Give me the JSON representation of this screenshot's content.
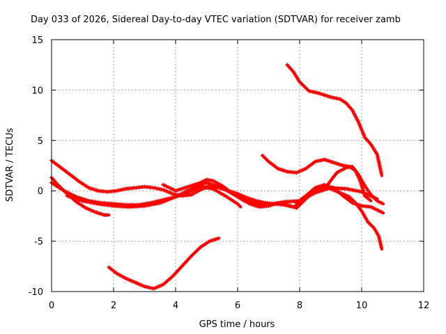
{
  "chart_data": {
    "type": "scatter",
    "title": "Day 033 of 2026, Sidereal Day-to-day VTEC variation (SDTVAR) for receiver zamb",
    "xlabel": "GPS time / hours",
    "ylabel": "SDTVAR / TECUs",
    "xlim": [
      0,
      12
    ],
    "ylim": [
      -10,
      15
    ],
    "xticks": [
      0,
      2,
      4,
      6,
      8,
      10,
      12
    ],
    "yticks": [
      -10,
      -5,
      0,
      5,
      10,
      15
    ],
    "xtick_labels": [
      "0",
      "2",
      "4",
      "6",
      "8",
      "10",
      "12"
    ],
    "ytick_labels": [
      "-10",
      "-5",
      "0",
      "5",
      "10",
      "15"
    ],
    "grid": true,
    "marker_color": "#ff0000",
    "series": [
      {
        "name": "track-1",
        "x": [
          0.0,
          0.3,
          0.6,
          0.9,
          1.2,
          1.5,
          1.8,
          2.1,
          2.4,
          2.7,
          3.0,
          3.3,
          3.6,
          3.9,
          4.2,
          4.5,
          4.8,
          5.1,
          5.4,
          5.7,
          6.0,
          6.3,
          6.6,
          6.9,
          7.2,
          7.5,
          7.8,
          8.0
        ],
        "y": [
          3.0,
          2.3,
          1.6,
          0.9,
          0.3,
          0.0,
          -0.1,
          0.0,
          0.2,
          0.3,
          0.4,
          0.3,
          0.1,
          -0.3,
          -0.5,
          -0.4,
          0.1,
          0.5,
          0.3,
          0.0,
          -0.3,
          -0.7,
          -1.0,
          -1.2,
          -1.3,
          -1.4,
          -1.6,
          -1.3
        ]
      },
      {
        "name": "track-2",
        "x": [
          0.0,
          0.2,
          0.5,
          0.8,
          1.1,
          1.4,
          1.7,
          1.85
        ],
        "y": [
          1.3,
          0.6,
          -0.3,
          -1.1,
          -1.7,
          -2.1,
          -2.4,
          -2.4
        ]
      },
      {
        "name": "track-3",
        "x": [
          0.0,
          0.4,
          0.8,
          1.2,
          1.6,
          2.0,
          2.4,
          2.8,
          3.2,
          3.6,
          4.0,
          4.4,
          4.8,
          5.2,
          5.6,
          6.0,
          6.1
        ],
        "y": [
          0.8,
          0.0,
          -0.6,
          -1.0,
          -1.2,
          -1.3,
          -1.4,
          -1.4,
          -1.2,
          -0.9,
          -0.6,
          -0.2,
          0.4,
          0.2,
          -0.5,
          -1.3,
          -1.6
        ]
      },
      {
        "name": "track-4",
        "x": [
          0.5,
          1.0,
          1.5,
          2.0,
          2.5,
          3.0,
          3.5,
          4.0,
          4.5,
          5.0,
          5.5,
          6.0,
          6.5,
          7.0,
          7.5,
          8.0,
          8.5,
          9.0,
          9.5,
          10.0,
          10.5
        ],
        "y": [
          -0.5,
          -1.0,
          -1.3,
          -1.5,
          -1.6,
          -1.5,
          -1.2,
          -0.6,
          0.2,
          0.8,
          0.3,
          -0.6,
          -1.2,
          -1.4,
          -1.1,
          -1.0,
          -0.2,
          0.3,
          0.2,
          -0.1,
          -0.8
        ]
      },
      {
        "name": "track-5",
        "x": [
          3.6,
          4.0,
          4.4,
          4.8,
          5.0,
          5.2,
          5.5,
          5.8,
          6.1,
          6.4,
          6.7,
          7.0,
          7.3,
          7.6,
          7.9,
          8.2,
          8.5,
          8.8,
          9.1,
          9.4,
          9.7,
          10.0,
          10.3,
          10.5,
          10.7
        ],
        "y": [
          0.6,
          0.0,
          0.4,
          0.8,
          1.1,
          1.0,
          0.5,
          -0.2,
          -0.8,
          -1.3,
          -1.6,
          -1.5,
          -1.2,
          -1.4,
          -1.7,
          -0.8,
          0.0,
          0.5,
          0.3,
          -0.5,
          -1.2,
          -1.5,
          -1.6,
          -1.9,
          -2.2
        ]
      },
      {
        "name": "track-6",
        "x": [
          7.9,
          8.2,
          8.5,
          8.8,
          9.0,
          9.3,
          9.6,
          9.8,
          10.0,
          10.2,
          10.4,
          10.55,
          10.65
        ],
        "y": [
          -1.2,
          -0.5,
          0.3,
          0.6,
          0.2,
          -0.2,
          -0.6,
          -1.2,
          -2.0,
          -3.1,
          -3.7,
          -4.5,
          -5.8
        ]
      },
      {
        "name": "track-7",
        "x": [
          7.6,
          7.8,
          8.0,
          8.3,
          8.6,
          9.0,
          9.3,
          9.5,
          9.7,
          9.9,
          10.1,
          10.3,
          10.5,
          10.65
        ],
        "y": [
          12.5,
          11.8,
          10.8,
          9.9,
          9.7,
          9.3,
          9.1,
          8.7,
          8.0,
          6.8,
          5.3,
          4.6,
          3.6,
          1.5
        ]
      },
      {
        "name": "track-8",
        "x": [
          6.8,
          7.0,
          7.3,
          7.6,
          7.9,
          8.2,
          8.5,
          8.8,
          9.1,
          9.4,
          9.6,
          9.8,
          9.95,
          10.1,
          10.3
        ],
        "y": [
          3.5,
          2.9,
          2.2,
          1.9,
          1.8,
          2.2,
          2.9,
          3.1,
          2.8,
          2.5,
          2.4,
          2.0,
          1.0,
          -0.5,
          -1.0
        ]
      },
      {
        "name": "track-9",
        "x": [
          8.8,
          9.0,
          9.2,
          9.5,
          9.7,
          9.9,
          10.1,
          10.3,
          10.5,
          10.7
        ],
        "y": [
          0.2,
          1.0,
          1.8,
          2.3,
          2.4,
          1.6,
          0.5,
          -0.4,
          -1.0,
          -1.3
        ]
      },
      {
        "name": "track-10",
        "x": [
          1.85,
          2.1,
          2.4,
          2.7,
          3.0,
          3.3,
          3.6,
          3.9,
          4.2,
          4.5,
          4.8,
          5.1,
          5.4
        ],
        "y": [
          -7.6,
          -8.2,
          -8.7,
          -9.1,
          -9.5,
          -9.7,
          -9.3,
          -8.5,
          -7.5,
          -6.5,
          -5.6,
          -5.0,
          -4.7
        ]
      }
    ]
  }
}
